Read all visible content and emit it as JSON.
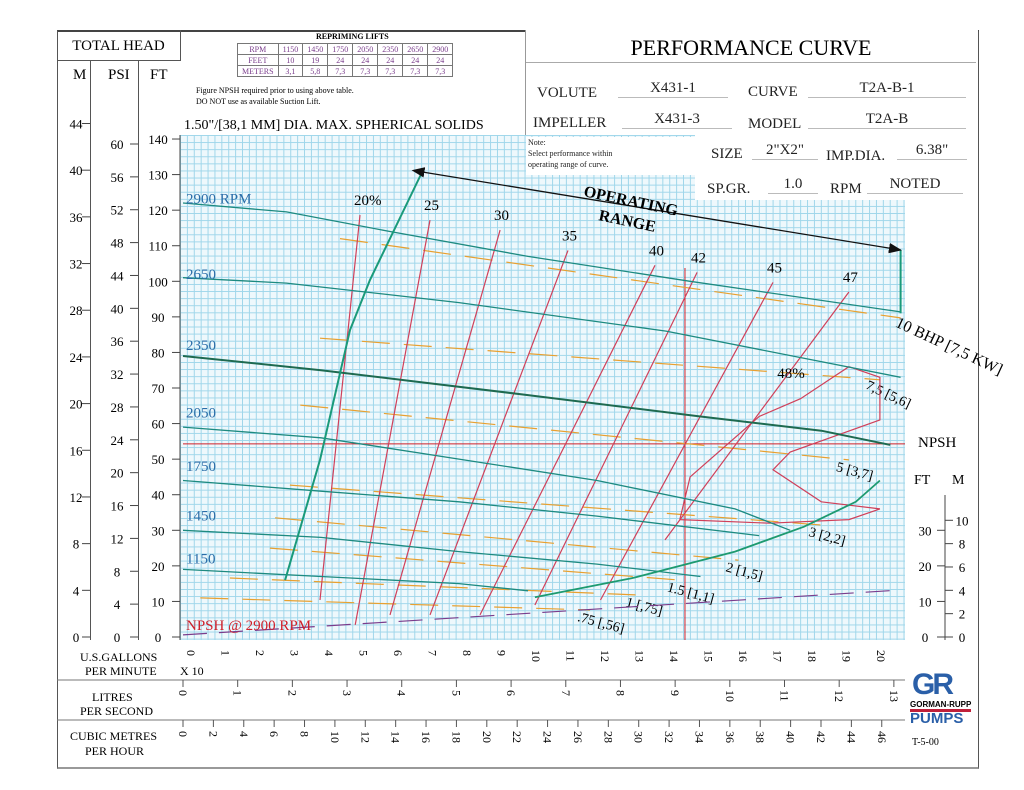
{
  "header": {
    "total_head": "TOTAL HEAD",
    "units": [
      "M",
      "PSI",
      "FT"
    ],
    "title": "PERFORMANCE CURVE",
    "fields": [
      {
        "label": "VOLUTE",
        "value": "X431-1"
      },
      {
        "label": "CURVE",
        "value": "T2A-B-1"
      },
      {
        "label": "IMPELLER",
        "value": "X431-3"
      },
      {
        "label": "MODEL",
        "value": "T2A-B"
      },
      {
        "label": "SIZE",
        "value": "2\"X2\""
      },
      {
        "label": "IMP.DIA.",
        "value": "6.38\""
      },
      {
        "label": "SP.GR.",
        "value": "1.0"
      },
      {
        "label": "RPM",
        "value": "NOTED"
      }
    ]
  },
  "repriming": {
    "title": "REPRIMING LIFTS",
    "rows": [
      [
        "RPM",
        "1150",
        "1450",
        "1750",
        "2050",
        "2350",
        "2650",
        "2900"
      ],
      [
        "FEET",
        "10",
        "19",
        "24",
        "24",
        "24",
        "24",
        "24"
      ],
      [
        "METERS",
        "3,1",
        "5,8",
        "7,3",
        "7,3",
        "7,3",
        "7,3",
        "7,3"
      ]
    ],
    "note1": "Figure NPSH required prior to using above table.",
    "note2": "DO NOT use as available Suction Lift."
  },
  "solids": "1.50\"/[38,1 MM] DIA. MAX. SPHERICAL SOLIDS",
  "note": {
    "line1": "Note:",
    "line2": "Select performance within",
    "line3": "operating range of curve."
  },
  "footer": {
    "gpm_label1": "U.S.GALLONS",
    "gpm_label2": "PER MINUTE",
    "gpm_mult": "X 10",
    "lps_label1": "LITRES",
    "lps_label2": "PER SECOND",
    "m3h_label1": "CUBIC METRES",
    "m3h_label2": "PER HOUR",
    "code": "T-5-00",
    "logo_mark": "GR",
    "logo_name": "GORMAN-RUPP",
    "logo_sub": "PUMPS"
  },
  "colors": {
    "head": "#1d8a80",
    "eff": "#d0405a",
    "bhp": "#e8a030",
    "npsh": "#1d9a70",
    "npsh2900": "#7a3d8c",
    "label_blue": "#2a6da8",
    "red": "#d0202a"
  },
  "chart_data": {
    "type": "line",
    "title": "PERFORMANCE CURVE",
    "xlabel": "U.S.GALLONS PER MINUTE X 10",
    "ylabel": "TOTAL HEAD (FT)",
    "xlim": [
      0,
      21
    ],
    "ylim": [
      0,
      140
    ],
    "x_ticks": [
      0,
      1,
      2,
      3,
      4,
      5,
      6,
      7,
      8,
      9,
      10,
      11,
      12,
      13,
      14,
      15,
      16,
      17,
      18,
      19,
      20
    ],
    "y_ticks_ft": [
      0,
      10,
      20,
      30,
      40,
      50,
      60,
      70,
      80,
      90,
      100,
      110,
      120,
      130,
      140
    ],
    "y_ticks_m": [
      0,
      4,
      8,
      12,
      16,
      20,
      24,
      28,
      32,
      36,
      40,
      44
    ],
    "y_ticks_psi": [
      0,
      4,
      8,
      12,
      16,
      20,
      24,
      28,
      32,
      36,
      40,
      44,
      48,
      52,
      56,
      60
    ],
    "lps_ticks": [
      0,
      1,
      2,
      3,
      4,
      5,
      6,
      7,
      8,
      9,
      10,
      11,
      12,
      13
    ],
    "m3h_ticks": [
      0,
      2,
      4,
      6,
      8,
      10,
      12,
      14,
      16,
      18,
      20,
      22,
      24,
      26,
      28,
      30,
      32,
      34,
      36,
      38,
      40,
      42,
      44,
      46
    ],
    "npsh_axis": {
      "ft_label": "FT",
      "m_label": "M",
      "ft_ticks": [
        0,
        10,
        20,
        30
      ],
      "m_ticks": [
        0,
        2,
        4,
        6,
        8,
        10
      ],
      "title": "NPSH"
    },
    "head_curves": [
      {
        "name": "2900 RPM",
        "points": [
          [
            0,
            122
          ],
          [
            3,
            119.5
          ],
          [
            6,
            114
          ],
          [
            10,
            107
          ],
          [
            14.7,
            100
          ],
          [
            20.8,
            91.4
          ]
        ]
      },
      {
        "name": "2650",
        "points": [
          [
            0,
            101
          ],
          [
            3,
            99.5
          ],
          [
            8,
            94
          ],
          [
            14,
            86
          ],
          [
            20.8,
            73
          ]
        ]
      },
      {
        "name": "2350",
        "points": [
          [
            0,
            79
          ],
          [
            4,
            75
          ],
          [
            10,
            68
          ],
          [
            15,
            62
          ],
          [
            18.5,
            58
          ],
          [
            20.5,
            54
          ]
        ]
      },
      {
        "name": "2050",
        "points": [
          [
            0,
            59
          ],
          [
            4,
            56
          ],
          [
            8,
            50
          ],
          [
            12,
            44
          ],
          [
            16,
            36
          ],
          [
            17.6,
            30
          ]
        ]
      },
      {
        "name": "1750",
        "points": [
          [
            0,
            44
          ],
          [
            4,
            41
          ],
          [
            8,
            38
          ],
          [
            12,
            34
          ],
          [
            16.7,
            28.5
          ]
        ]
      },
      {
        "name": "1450",
        "points": [
          [
            0,
            30
          ],
          [
            4,
            28
          ],
          [
            8,
            24
          ],
          [
            12,
            20.5
          ],
          [
            15,
            17
          ]
        ]
      },
      {
        "name": "1150",
        "points": [
          [
            0,
            19
          ],
          [
            4,
            17
          ],
          [
            8,
            15
          ],
          [
            10,
            13
          ]
        ]
      }
    ],
    "efficiency": [
      {
        "name": "20%",
        "points": [
          [
            3.97,
            10.4
          ],
          [
            5.13,
            118.6
          ]
        ]
      },
      {
        "name": "25",
        "points": [
          [
            4.99,
            3.4
          ],
          [
            7.16,
            117.2
          ]
        ]
      },
      {
        "name": "30",
        "points": [
          [
            6.0,
            6.2
          ],
          [
            9.19,
            114.4
          ]
        ]
      },
      {
        "name": "35",
        "points": [
          [
            7.16,
            6.2
          ],
          [
            11.16,
            108.7
          ]
        ]
      },
      {
        "name": "40",
        "points": [
          [
            8.61,
            6.2
          ],
          [
            13.68,
            104.5
          ]
        ]
      },
      {
        "name": "42",
        "points": [
          [
            10.2,
            9.0
          ],
          [
            14.9,
            102.5
          ]
        ]
      },
      {
        "name": "45",
        "points": [
          [
            12.1,
            10.4
          ],
          [
            17.1,
            99.7
          ]
        ]
      },
      {
        "name": "47",
        "points": [
          [
            13.97,
            27.3
          ],
          [
            19.3,
            97.0
          ]
        ]
      },
      {
        "name": "48%",
        "points": [
          [
            14.4,
            33
          ],
          [
            14.7,
            45
          ],
          [
            16.7,
            62
          ],
          [
            17.9,
            67
          ],
          [
            19.3,
            76
          ],
          [
            20.2,
            73
          ],
          [
            20.2,
            61
          ],
          [
            17.6,
            52
          ],
          [
            17.1,
            47
          ],
          [
            18.5,
            38
          ],
          [
            20.2,
            36
          ],
          [
            19.3,
            33
          ],
          [
            17.0,
            32
          ],
          [
            14.4,
            33
          ]
        ]
      }
    ],
    "bhp": [
      {
        "name": "10 BHP [7,5 KW]",
        "points": [
          [
            4.55,
            112
          ],
          [
            20.8,
            89.7
          ]
        ]
      },
      {
        "name": "7,5 [5,6]",
        "points": [
          [
            3.97,
            84
          ],
          [
            20.2,
            72.3
          ]
        ]
      },
      {
        "name": "5 [3,7]",
        "points": [
          [
            3.4,
            65.2
          ],
          [
            19.3,
            49.8
          ]
        ]
      },
      {
        "name": "3 [2,2]",
        "points": [
          [
            3.1,
            42.7
          ],
          [
            18.5,
            31.5
          ]
        ]
      },
      {
        "name": "2 [1,5]",
        "points": [
          [
            2.67,
            33.5
          ],
          [
            16.1,
            21.6
          ]
        ]
      },
      {
        "name": "1.5 [1,1]",
        "points": [
          [
            2.52,
            25
          ],
          [
            14.4,
            16
          ]
        ]
      },
      {
        "name": "1 [,75]",
        "points": [
          [
            1.36,
            16.6
          ],
          [
            13.2,
            11.8
          ]
        ]
      },
      {
        "name": ".75 [,56]",
        "points": [
          [
            0.5,
            11
          ],
          [
            11.8,
            7.6
          ]
        ]
      }
    ],
    "npsh_required": {
      "points": [
        [
          10.2,
          11.2
        ],
        [
          13,
          16.5
        ],
        [
          16,
          24
        ],
        [
          18,
          31
        ],
        [
          19.5,
          38
        ],
        [
          20.2,
          44
        ]
      ]
    },
    "npsh_2900": {
      "name": "NPSH @ 2900 RPM",
      "points": [
        [
          0,
          0.6
        ],
        [
          20.8,
          13.2
        ]
      ]
    },
    "operating_range": {
      "label1": "OPERATING",
      "label2": "RANGE",
      "boundary": [
        [
          2.96,
          16
        ],
        [
          3.97,
          49.8
        ],
        [
          4.84,
          86.3
        ],
        [
          5.42,
          100.4
        ],
        [
          6.96,
          131.3
        ]
      ],
      "arrow": [
        [
          6.96,
          130.7
        ],
        [
          20.8,
          108.8
        ]
      ]
    },
    "reference_lines": {
      "head_ft": 54.3,
      "gpm_x10": 14.55
    }
  }
}
